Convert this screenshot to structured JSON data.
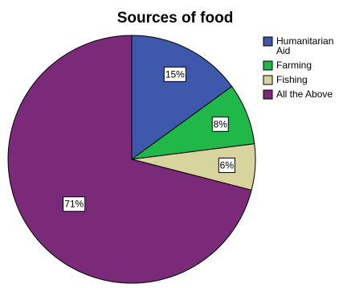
{
  "chart_data": {
    "type": "pie",
    "title": "Sources of food",
    "slices": [
      {
        "label": "Humanitarian Aid",
        "label_lines": [
          "Humanitarian",
          "Aid"
        ],
        "value": 15,
        "value_label": "15%",
        "color": "#3e58ac"
      },
      {
        "label": "Farming",
        "label_lines": [
          "Farming"
        ],
        "value": 8,
        "value_label": "8%",
        "color": "#21b84a"
      },
      {
        "label": "Fishing",
        "label_lines": [
          "Fishing"
        ],
        "value": 6,
        "value_label": "6%",
        "color": "#d8d49e"
      },
      {
        "label": "All the Above",
        "label_lines": [
          "All the Above"
        ],
        "value": 71,
        "value_label": "71%",
        "color": "#7b2a7a"
      }
    ],
    "start_angle": "12 o'clock",
    "direction": "clockwise",
    "legend_position": "top-right"
  }
}
